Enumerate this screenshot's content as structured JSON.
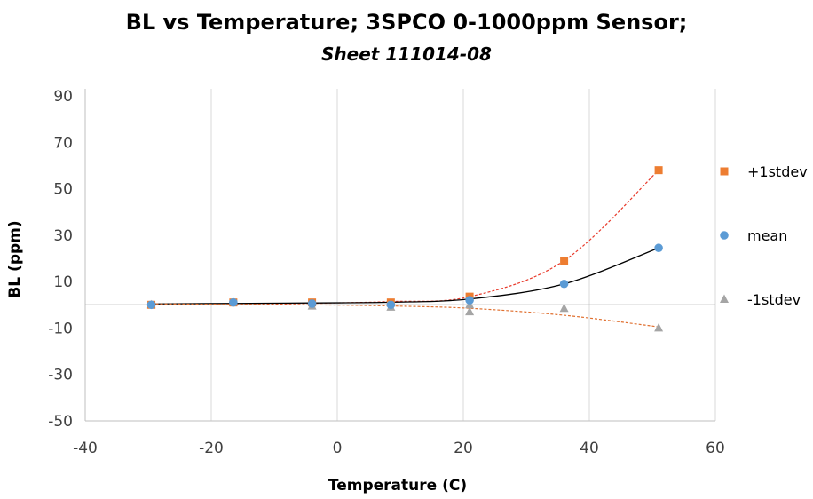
{
  "chart_data": {
    "type": "scatter",
    "title": "BL vs Temperature; 3SPCO 0-1000ppm Sensor;",
    "subtitle": "Sheet 111014-08",
    "xlabel": "Temperature (C)",
    "ylabel": "BL (ppm)",
    "xlim": [
      -40,
      60
    ],
    "ylim": [
      -50,
      90
    ],
    "x_ticks": [
      -40,
      -20,
      0,
      20,
      40,
      60
    ],
    "y_ticks": [
      -50,
      -30,
      -10,
      10,
      30,
      50,
      70,
      90
    ],
    "x_tick_labels": [
      "-40",
      "-20",
      "0",
      "20",
      "40",
      "60"
    ],
    "y_tick_labels": [
      "-50",
      "-30",
      "-10",
      "10",
      "30",
      "50",
      "70",
      "90"
    ],
    "grid": "vertical",
    "legend_position": "right",
    "series": [
      {
        "name": "+1stdev",
        "marker": "square",
        "color": "#ED7D31",
        "trendline_color": "#E8392A",
        "trendline_style": "dotted",
        "x": [
          -29.5,
          -16.5,
          -4.0,
          8.5,
          21.0,
          36.0,
          51.0
        ],
        "y": [
          0.0,
          1.0,
          1.0,
          1.0,
          3.5,
          19.0,
          58.0
        ],
        "trend": [
          0.2,
          0.35,
          0.7,
          1.4,
          3.5,
          19.0,
          58.0
        ]
      },
      {
        "name": "mean",
        "marker": "circle",
        "color": "#5B9BD5",
        "trendline_color": "#000000",
        "trendline_style": "solid",
        "x": [
          -29.5,
          -16.5,
          -4.0,
          8.5,
          21.0,
          36.0,
          51.0
        ],
        "y": [
          0.0,
          1.0,
          0.5,
          0.0,
          2.0,
          9.0,
          24.5
        ],
        "trend": [
          0.4,
          0.6,
          0.8,
          1.1,
          2.5,
          9.0,
          24.5
        ]
      },
      {
        "name": "-1stdev",
        "marker": "triangle",
        "color": "#A5A5A5",
        "trendline_color": "#E07030",
        "trendline_style": "dotted",
        "x": [
          -29.5,
          -16.5,
          -4.0,
          8.5,
          21.0,
          21.0,
          36.0,
          51.0
        ],
        "y": [
          0.0,
          1.0,
          -0.5,
          -1.0,
          0.0,
          -3.0,
          -1.5,
          -10.0
        ],
        "trend": [
          0.4,
          0.2,
          0.0,
          -0.5,
          -1.5,
          -1.5,
          -4.5,
          -9.5
        ]
      }
    ],
    "zero_line": 0
  }
}
